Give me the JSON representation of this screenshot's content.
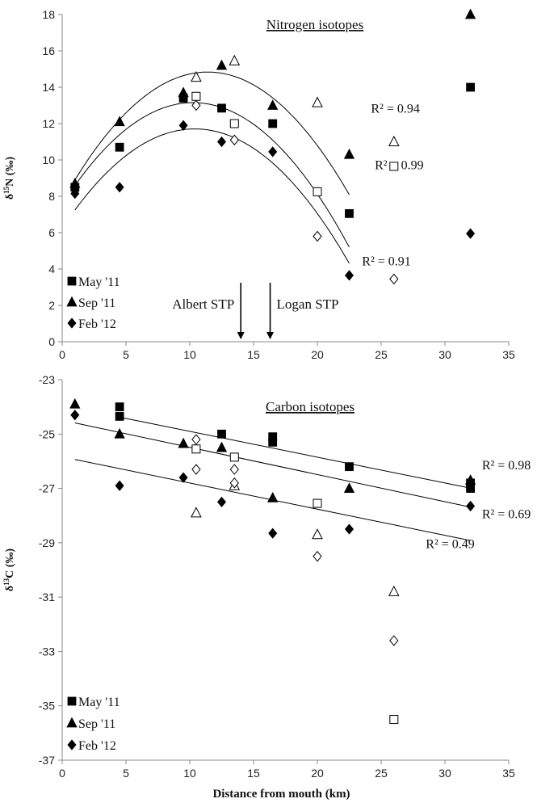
{
  "chart_data": [
    {
      "type": "scatter",
      "title": "Nitrogen isotopes",
      "ylabel": "δ15N (‰)",
      "ylabel_main": "δ",
      "ylabel_sup": "15",
      "ylabel_rest": "N (‰)",
      "xlabel": "",
      "xlim": [
        0,
        35
      ],
      "ylim": [
        0,
        18
      ],
      "xticks": [
        0,
        5,
        10,
        15,
        20,
        25,
        30,
        35
      ],
      "yticks": [
        0,
        2,
        4,
        6,
        8,
        10,
        12,
        14,
        16,
        18
      ],
      "grid": false,
      "legend_position": "bottom-left",
      "legend": [
        "May '11",
        "Sep '11",
        "Feb '12"
      ],
      "series": [
        {
          "name": "May '11",
          "marker": "square",
          "filled": true,
          "points": [
            [
              1,
              8.5
            ],
            [
              4.5,
              10.7
            ],
            [
              9.5,
              13.4
            ],
            [
              12.5,
              12.85
            ],
            [
              16.5,
              12
            ],
            [
              22.5,
              7.05
            ],
            [
              32,
              14
            ]
          ]
        },
        {
          "name": "May '11",
          "marker": "square",
          "filled": false,
          "points": [
            [
              10.5,
              13.5
            ],
            [
              13.5,
              12
            ],
            [
              20,
              8.25
            ],
            [
              26,
              9.65
            ]
          ]
        },
        {
          "name": "Sep '11",
          "marker": "triangle",
          "filled": true,
          "points": [
            [
              1,
              8.7
            ],
            [
              4.5,
              12.1
            ],
            [
              9.5,
              13.7
            ],
            [
              12.5,
              15.2
            ],
            [
              16.5,
              13
            ],
            [
              22.5,
              10.3
            ],
            [
              32,
              18
            ]
          ]
        },
        {
          "name": "Sep '11",
          "marker": "triangle",
          "filled": false,
          "points": [
            [
              10.5,
              14.55
            ],
            [
              13.5,
              15.45
            ],
            [
              20,
              13.15
            ],
            [
              26,
              11
            ]
          ]
        },
        {
          "name": "Feb '12",
          "marker": "diamond",
          "filled": true,
          "points": [
            [
              1,
              8.15
            ],
            [
              4.5,
              8.5
            ],
            [
              9.5,
              11.9
            ],
            [
              12.5,
              11
            ],
            [
              16.5,
              10.45
            ],
            [
              22.5,
              3.65
            ],
            [
              32,
              5.95
            ]
          ]
        },
        {
          "name": "Feb '12",
          "marker": "diamond",
          "filled": false,
          "points": [
            [
              10.5,
              13
            ],
            [
              13.5,
              11.1
            ],
            [
              20,
              5.8
            ],
            [
              26,
              3.45
            ]
          ]
        }
      ],
      "trendlines": [
        {
          "kind": "quadratic",
          "coefficients": [
            7.71,
            1.25,
            -0.0548
          ],
          "x_range": [
            1,
            22.5
          ],
          "label": "R² = 0.94",
          "label_at": [
            24.2,
            12.6
          ]
        },
        {
          "kind": "quadratic",
          "coefficients": [
            7.56,
            1.09,
            -0.0531
          ],
          "x_range": [
            1,
            22.5
          ],
          "label": "R² = 0.99",
          "label_at": [
            24.5,
            9.5
          ]
        },
        {
          "kind": "quadratic",
          "coefficients": [
            6.25,
            1.05,
            -0.0505
          ],
          "x_range": [
            1,
            22.5
          ],
          "label": "R² = 0.91",
          "label_at": [
            23.5,
            4.2
          ]
        }
      ],
      "annotations": [
        {
          "text": "Albert STP",
          "arrow_x": 14
        },
        {
          "text": "Logan STP",
          "arrow_x": 16.3
        }
      ]
    },
    {
      "type": "scatter",
      "title": "Carbon isotopes",
      "ylabel": "δ13C (‰)",
      "ylabel_main": "δ",
      "ylabel_sup": "13",
      "ylabel_rest": "C (‰)",
      "xlabel": "Distance from mouth (km)",
      "xlim": [
        0,
        35
      ],
      "ylim": [
        -37,
        -23
      ],
      "xticks": [
        0,
        5,
        10,
        15,
        20,
        25,
        30,
        35
      ],
      "yticks": [
        -37,
        -35,
        -33,
        -31,
        -29,
        -27,
        -25,
        -23
      ],
      "grid": false,
      "legend_position": "bottom-left",
      "legend": [
        "May '11",
        "Sep '11",
        "Feb '12"
      ],
      "series": [
        {
          "name": "May '11",
          "marker": "square",
          "filled": true,
          "points": [
            [
              4.5,
              -24
            ],
            [
              4.5,
              -24.35
            ],
            [
              12.5,
              -25
            ],
            [
              16.5,
              -25.1
            ],
            [
              16.5,
              -25.3
            ],
            [
              22.5,
              -26.2
            ],
            [
              32,
              -26.8
            ],
            [
              32,
              -27
            ]
          ]
        },
        {
          "name": "May '11",
          "marker": "square",
          "filled": false,
          "points": [
            [
              10.5,
              -25.55
            ],
            [
              13.5,
              -25.85
            ],
            [
              20,
              -27.55
            ],
            [
              26,
              -35.5
            ]
          ]
        },
        {
          "name": "Sep '11",
          "marker": "triangle",
          "filled": true,
          "points": [
            [
              1,
              -23.9
            ],
            [
              4.5,
              -25
            ],
            [
              9.5,
              -25.35
            ],
            [
              12.5,
              -25.5
            ],
            [
              16.5,
              -27.35
            ],
            [
              22.5,
              -27
            ],
            [
              32,
              -26.7
            ]
          ]
        },
        {
          "name": "Sep '11",
          "marker": "triangle",
          "filled": false,
          "points": [
            [
              10.5,
              -27.9
            ],
            [
              13.5,
              -26.9
            ],
            [
              20,
              -28.7
            ],
            [
              26,
              -30.8
            ]
          ]
        },
        {
          "name": "Feb '12",
          "marker": "diamond",
          "filled": true,
          "points": [
            [
              1,
              -24.3
            ],
            [
              4.5,
              -26.9
            ],
            [
              9.5,
              -26.6
            ],
            [
              12.5,
              -27.5
            ],
            [
              16.5,
              -28.65
            ],
            [
              22.5,
              -28.5
            ],
            [
              32,
              -27.65
            ]
          ]
        },
        {
          "name": "Feb '12",
          "marker": "diamond",
          "filled": false,
          "points": [
            [
              10.5,
              -25.2
            ],
            [
              10.5,
              -26.3
            ],
            [
              13.5,
              -26.3
            ],
            [
              13.5,
              -26.8
            ],
            [
              20,
              -29.5
            ],
            [
              26,
              -32.6
            ]
          ]
        }
      ],
      "trendlines": [
        {
          "kind": "linear",
          "coefficients": [
            -23.95,
            -0.095
          ],
          "x_range": [
            4.5,
            32
          ],
          "label": "R² = 0.98",
          "label_at": [
            32.9,
            -26.3
          ]
        },
        {
          "kind": "linear",
          "coefficients": [
            -24.49,
            -0.1
          ],
          "x_range": [
            1,
            32
          ],
          "label": "R² = 0.69",
          "label_at": [
            32.9,
            -28.1
          ]
        },
        {
          "kind": "linear",
          "coefficients": [
            -25.84,
            -0.0962
          ],
          "x_range": [
            1,
            32
          ],
          "label": "R² = 0.49",
          "label_at": [
            28.5,
            -29.2
          ]
        }
      ],
      "annotations": []
    }
  ]
}
